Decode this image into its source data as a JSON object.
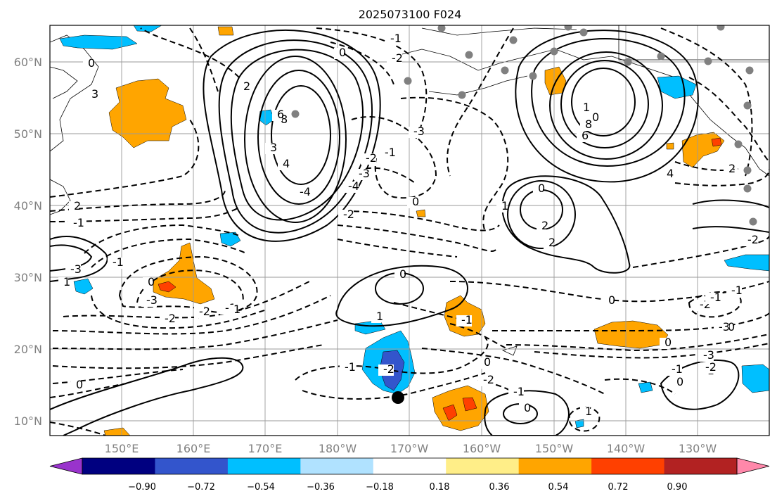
{
  "title": "2025073100 F024",
  "map": {
    "lat_labels": [
      "60°N",
      "50°N",
      "40°N",
      "30°N",
      "20°N",
      "10°N"
    ],
    "lon_labels": [
      "150°E",
      "160°E",
      "170°E",
      "180°W",
      "170°W",
      "160°W",
      "150°W",
      "140°W",
      "130°W"
    ],
    "contour_labels": [
      "0",
      "2",
      "-1",
      "-3",
      "-2",
      "-1",
      "3",
      "0",
      "-3",
      "-2",
      "1",
      "-1",
      "-2",
      "8",
      "6",
      "4",
      "3",
      "2",
      "0",
      "-4",
      "-3",
      "-2",
      "-1",
      "0",
      "-2",
      "-4",
      "-3",
      "-2",
      "-1",
      "0",
      "1",
      "0",
      "-1",
      "-2",
      "-1",
      "0",
      "1",
      "0",
      "2",
      "2",
      "1",
      "0",
      "8",
      "6",
      "4",
      "2",
      "0",
      "-1",
      "-2",
      "-1",
      "0",
      "-3",
      "-2",
      "0",
      "-1",
      "1",
      "0",
      "-1",
      "-3",
      "-2",
      "1",
      "0",
      "-1"
    ],
    "highlight_marker": "black dot",
    "station_markers": "gray dots"
  },
  "colorbar": {
    "ticks": [
      "−0.90",
      "−0.72",
      "−0.54",
      "−0.36",
      "−0.18",
      "0.18",
      "0.36",
      "0.54",
      "0.72",
      "0.90"
    ],
    "colors": [
      "#9933cc",
      "#000080",
      "#3355cc",
      "#00bfff",
      "#b0e2ff",
      "#ffffff",
      "#ffee88",
      "#ffa500",
      "#ff4000",
      "#b22222",
      "#ff88aa"
    ]
  }
}
